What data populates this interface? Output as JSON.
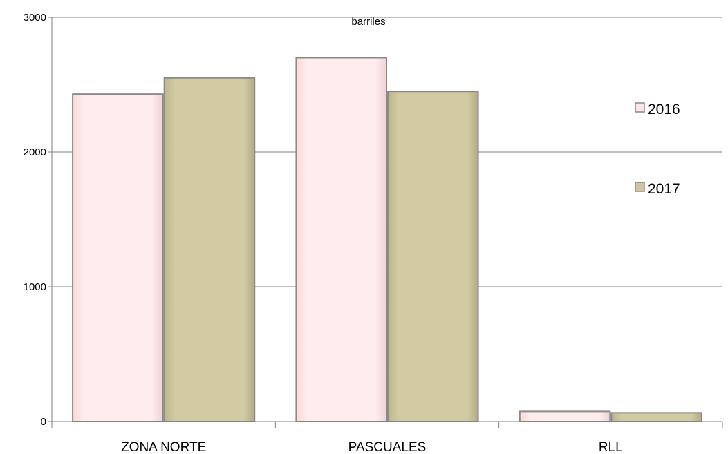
{
  "chart_data": {
    "type": "bar",
    "ylabel": "barriles",
    "categories": [
      "ZONA NORTE",
      "PASCUALES",
      "RLL"
    ],
    "series": [
      {
        "name": "2016",
        "values": [
          2430,
          2700,
          75
        ]
      },
      {
        "name": "2017",
        "values": [
          2550,
          2450,
          65
        ]
      }
    ],
    "ylim": [
      0,
      3000
    ],
    "yticks": [
      0,
      1000,
      2000,
      3000
    ],
    "grid": true,
    "legend_position": "right",
    "colors": {
      "2016": "#fde6e6",
      "2017": "#cfc79f"
    }
  }
}
